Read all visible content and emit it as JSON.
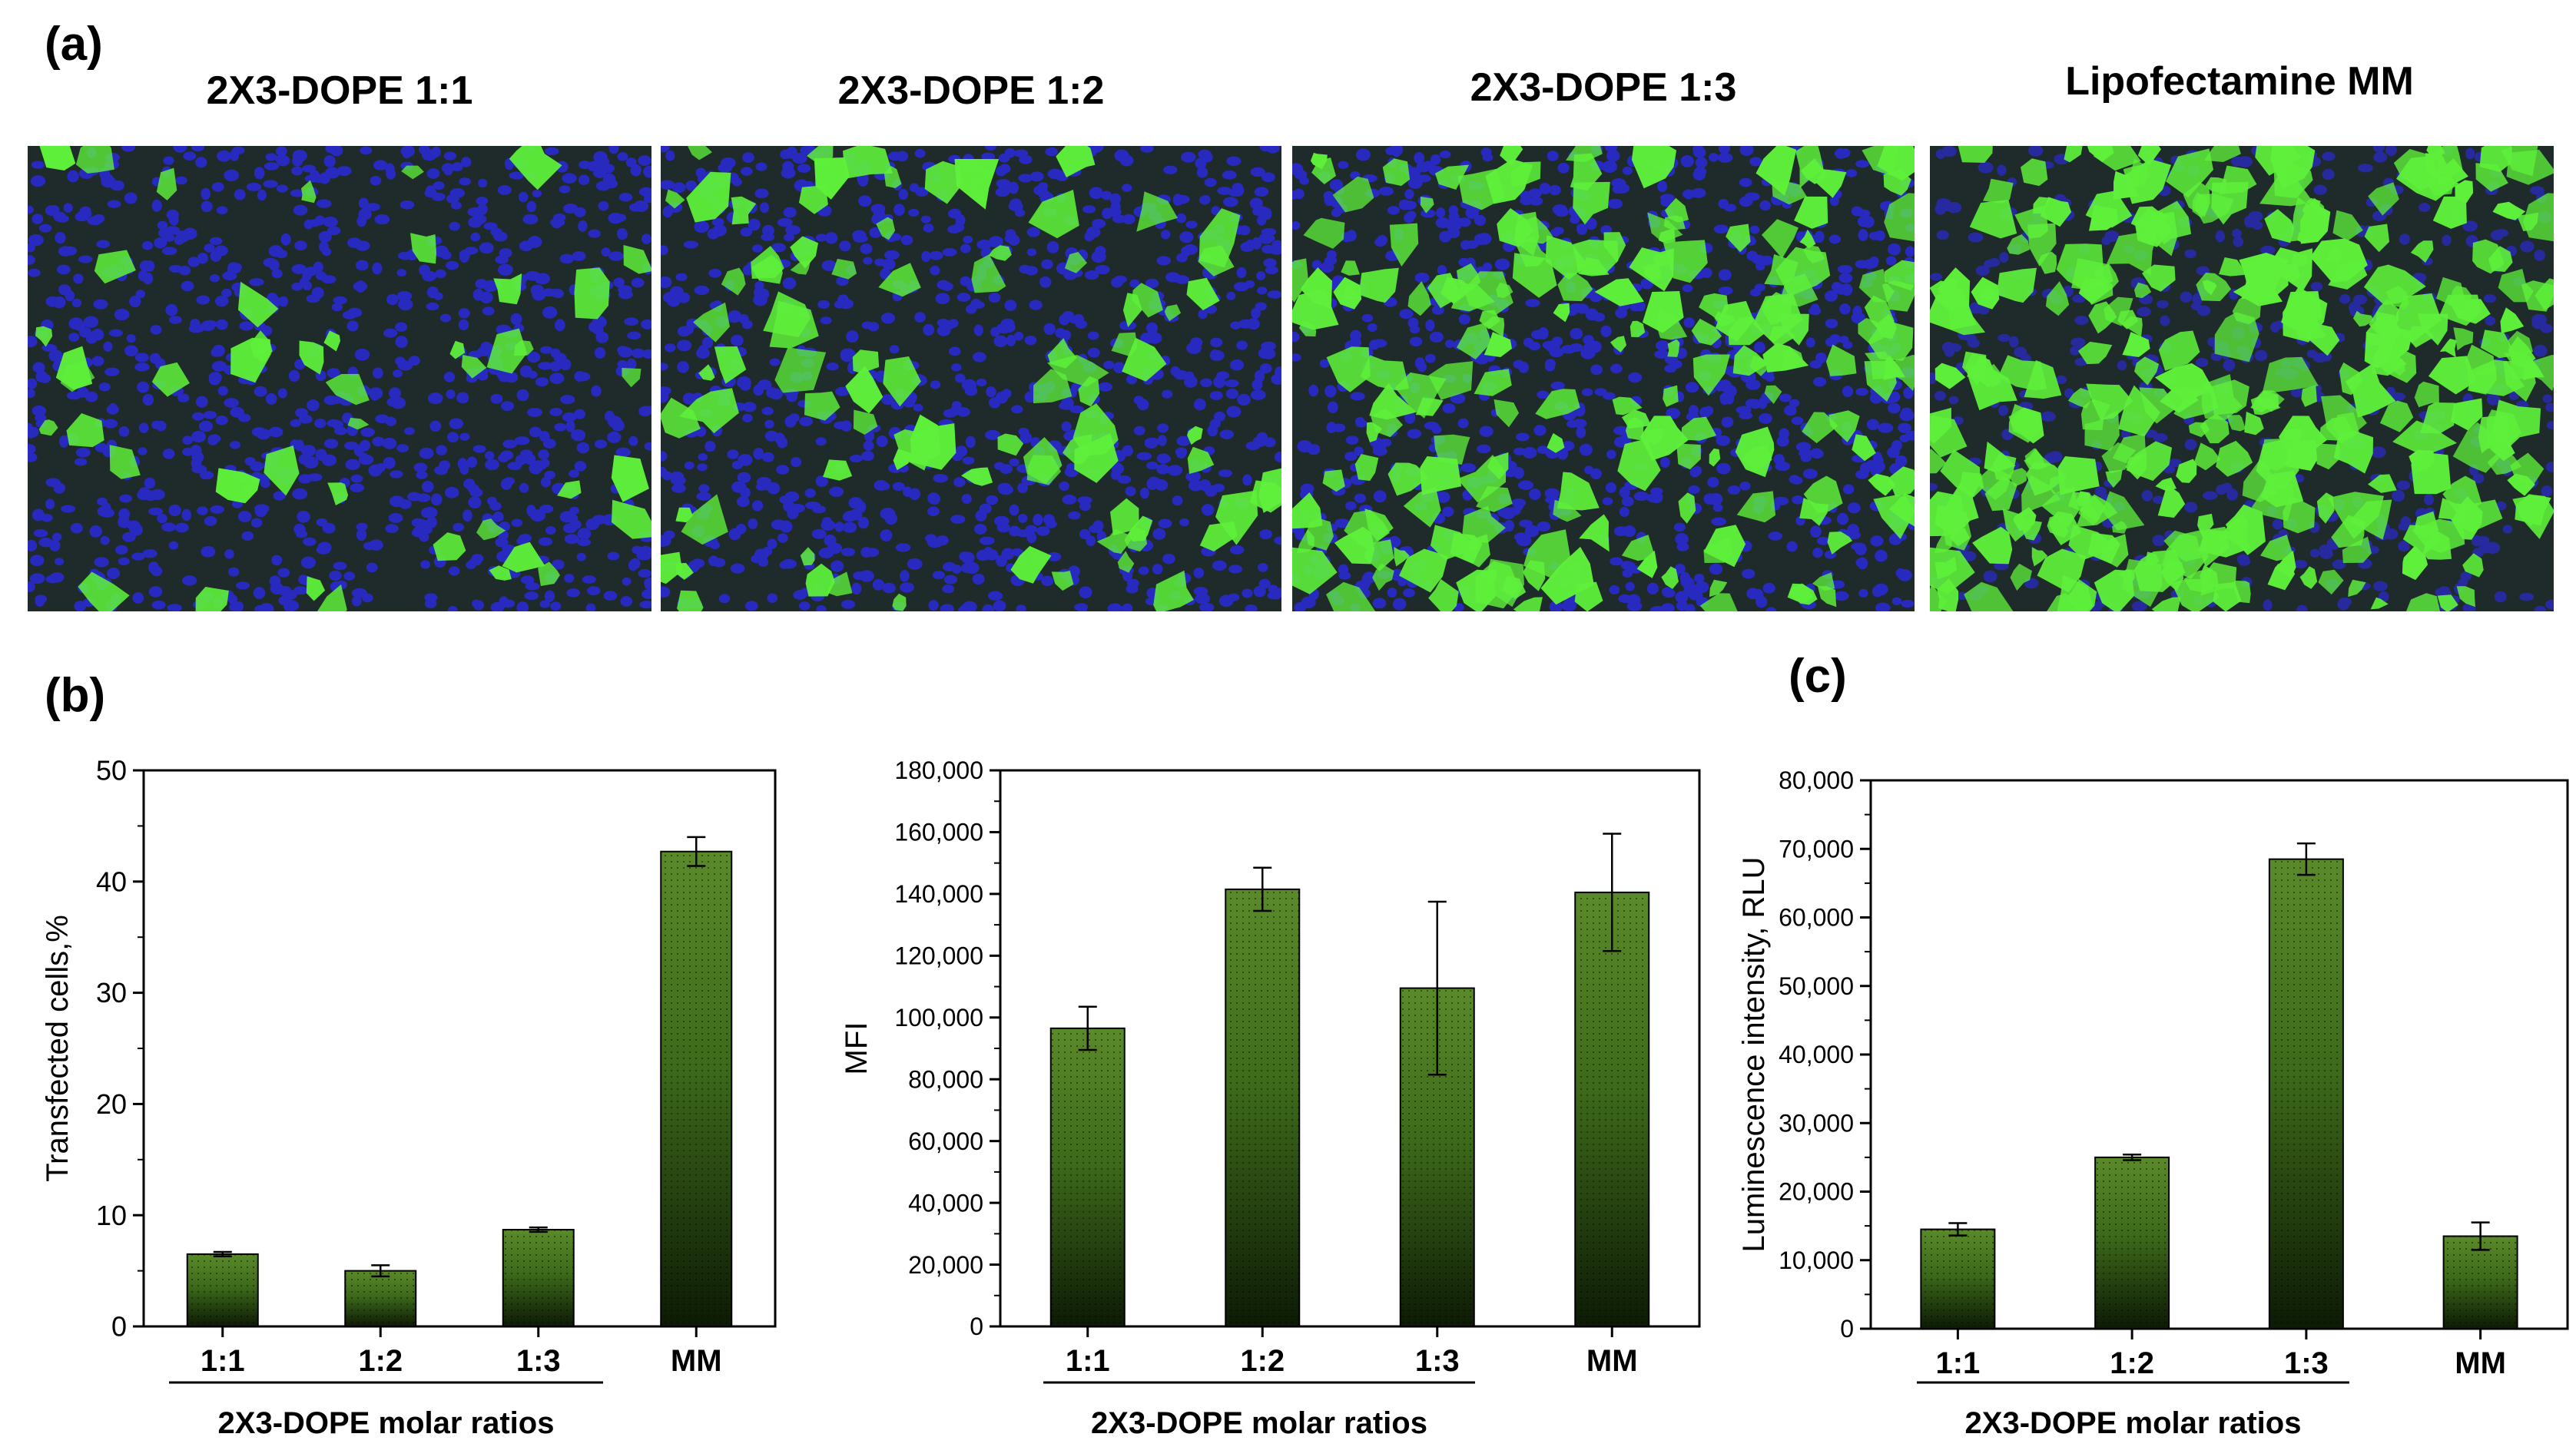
{
  "panels": {
    "a": "(a)",
    "b": "(b)",
    "c": "(c)"
  },
  "images": [
    {
      "title": "2X3-DOPE 1:1"
    },
    {
      "title": "2X3-DOPE 1:2"
    },
    {
      "title": "2X3-DOPE 1:3"
    },
    {
      "title": "Lipofectamine MM"
    }
  ],
  "colors": {
    "bar_top": "#5a8a2a",
    "bar_bottom": "#0d1a05",
    "cells_green": "#5ef03a",
    "nuclei_blue": "#2a2ad0",
    "background_dark": "#1f2a2a"
  },
  "chart_data": [
    {
      "type": "bar",
      "categories": [
        "1:1",
        "1:2",
        "1:3",
        "MM"
      ],
      "values": [
        6.5,
        5.0,
        8.7,
        42.7
      ],
      "errors": [
        0.2,
        0.5,
        0.2,
        1.3
      ],
      "ylabel": "Transfected cells,%",
      "ylim": [
        0,
        50
      ],
      "yticks": [
        0,
        10,
        20,
        30,
        40,
        50
      ],
      "ytick_labels": [
        "0",
        "10",
        "20",
        "30",
        "40",
        "50"
      ],
      "group_label": "2X3-DOPE molar ratios",
      "grid": false
    },
    {
      "type": "bar",
      "categories": [
        "1:1",
        "1:2",
        "1:3",
        "MM"
      ],
      "values": [
        96500,
        141500,
        109500,
        140500
      ],
      "errors": [
        7000,
        7000,
        28000,
        19000
      ],
      "ylabel": "MFI",
      "ylim": [
        0,
        180000
      ],
      "yticks": [
        0,
        20000,
        40000,
        60000,
        80000,
        100000,
        120000,
        140000,
        160000,
        180000
      ],
      "ytick_labels": [
        "0",
        "20,000",
        "40,000",
        "60,000",
        "80,000",
        "100,000",
        "120,000",
        "140,000",
        "160,000",
        "180,000"
      ],
      "group_label": "2X3-DOPE molar ratios",
      "grid": false
    },
    {
      "type": "bar",
      "categories": [
        "1:1",
        "1:2",
        "1:3",
        "MM"
      ],
      "values": [
        14500,
        25000,
        68500,
        13500
      ],
      "errors": [
        900,
        400,
        2300,
        2000
      ],
      "ylabel": "Luminescence intensity, RLU",
      "ylim": [
        0,
        80000
      ],
      "yticks": [
        0,
        10000,
        20000,
        30000,
        40000,
        50000,
        60000,
        70000,
        80000
      ],
      "ytick_labels": [
        "0",
        "10,000",
        "20,000",
        "30,000",
        "40,000",
        "50,000",
        "60,000",
        "70,000",
        "80,000"
      ],
      "group_label": "2X3-DOPE molar ratios",
      "grid": false
    }
  ]
}
